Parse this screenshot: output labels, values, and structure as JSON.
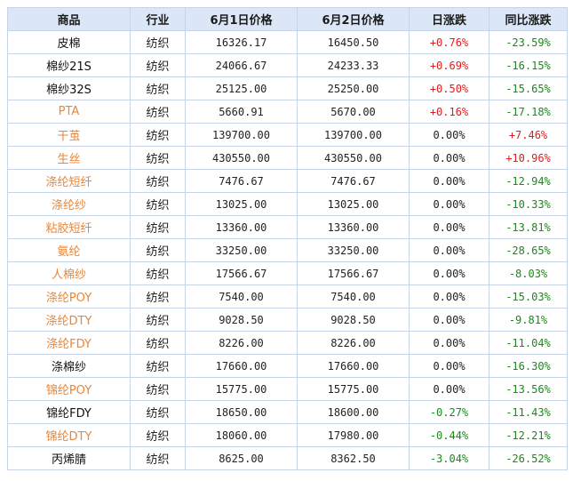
{
  "headers": [
    "商品",
    "行业",
    "6月1日价格",
    "6月2日价格",
    "日涨跌",
    "同比涨跌"
  ],
  "colors": {
    "header_bg": "#dbe7f7",
    "border": "#c6d3e8",
    "up": "#e31b1b",
    "down": "#1a8a1a",
    "link": "#e8863a"
  },
  "rows": [
    {
      "name": "皮棉",
      "is_link": false,
      "industry": "纺织",
      "price_jun1": "16326.17",
      "price_jun2": "16450.50",
      "daily": "+0.76%",
      "daily_dir": "pos",
      "yoy": "-23.59%",
      "yoy_dir": "neg"
    },
    {
      "name": "棉纱21S",
      "is_link": false,
      "industry": "纺织",
      "price_jun1": "24066.67",
      "price_jun2": "24233.33",
      "daily": "+0.69%",
      "daily_dir": "pos",
      "yoy": "-16.15%",
      "yoy_dir": "neg"
    },
    {
      "name": "棉纱32S",
      "is_link": false,
      "industry": "纺织",
      "price_jun1": "25125.00",
      "price_jun2": "25250.00",
      "daily": "+0.50%",
      "daily_dir": "pos",
      "yoy": "-15.65%",
      "yoy_dir": "neg"
    },
    {
      "name": "PTA",
      "is_link": true,
      "industry": "纺织",
      "price_jun1": "5660.91",
      "price_jun2": "5670.00",
      "daily": "+0.16%",
      "daily_dir": "pos",
      "yoy": "-17.18%",
      "yoy_dir": "neg"
    },
    {
      "name": "干茧",
      "is_link": true,
      "industry": "纺织",
      "price_jun1": "139700.00",
      "price_jun2": "139700.00",
      "daily": "0.00%",
      "daily_dir": "neu",
      "yoy": "+7.46%",
      "yoy_dir": "pos"
    },
    {
      "name": "生丝",
      "is_link": true,
      "industry": "纺织",
      "price_jun1": "430550.00",
      "price_jun2": "430550.00",
      "daily": "0.00%",
      "daily_dir": "neu",
      "yoy": "+10.96%",
      "yoy_dir": "pos"
    },
    {
      "name": "涤纶短纤",
      "is_link": true,
      "industry": "纺织",
      "price_jun1": "7476.67",
      "price_jun2": "7476.67",
      "daily": "0.00%",
      "daily_dir": "neu",
      "yoy": "-12.94%",
      "yoy_dir": "neg"
    },
    {
      "name": "涤纶纱",
      "is_link": true,
      "industry": "纺织",
      "price_jun1": "13025.00",
      "price_jun2": "13025.00",
      "daily": "0.00%",
      "daily_dir": "neu",
      "yoy": "-10.33%",
      "yoy_dir": "neg"
    },
    {
      "name": "粘胶短纤",
      "is_link": true,
      "industry": "纺织",
      "price_jun1": "13360.00",
      "price_jun2": "13360.00",
      "daily": "0.00%",
      "daily_dir": "neu",
      "yoy": "-13.81%",
      "yoy_dir": "neg"
    },
    {
      "name": "氨纶",
      "is_link": true,
      "industry": "纺织",
      "price_jun1": "33250.00",
      "price_jun2": "33250.00",
      "daily": "0.00%",
      "daily_dir": "neu",
      "yoy": "-28.65%",
      "yoy_dir": "neg"
    },
    {
      "name": "人棉纱",
      "is_link": true,
      "industry": "纺织",
      "price_jun1": "17566.67",
      "price_jun2": "17566.67",
      "daily": "0.00%",
      "daily_dir": "neu",
      "yoy": "-8.03%",
      "yoy_dir": "neg"
    },
    {
      "name": "涤纶POY",
      "is_link": true,
      "industry": "纺织",
      "price_jun1": "7540.00",
      "price_jun2": "7540.00",
      "daily": "0.00%",
      "daily_dir": "neu",
      "yoy": "-15.03%",
      "yoy_dir": "neg"
    },
    {
      "name": "涤纶DTY",
      "is_link": true,
      "industry": "纺织",
      "price_jun1": "9028.50",
      "price_jun2": "9028.50",
      "daily": "0.00%",
      "daily_dir": "neu",
      "yoy": "-9.81%",
      "yoy_dir": "neg"
    },
    {
      "name": "涤纶FDY",
      "is_link": true,
      "industry": "纺织",
      "price_jun1": "8226.00",
      "price_jun2": "8226.00",
      "daily": "0.00%",
      "daily_dir": "neu",
      "yoy": "-11.04%",
      "yoy_dir": "neg"
    },
    {
      "name": "涤棉纱",
      "is_link": false,
      "industry": "纺织",
      "price_jun1": "17660.00",
      "price_jun2": "17660.00",
      "daily": "0.00%",
      "daily_dir": "neu",
      "yoy": "-16.30%",
      "yoy_dir": "neg"
    },
    {
      "name": "锦纶POY",
      "is_link": true,
      "industry": "纺织",
      "price_jun1": "15775.00",
      "price_jun2": "15775.00",
      "daily": "0.00%",
      "daily_dir": "neu",
      "yoy": "-13.56%",
      "yoy_dir": "neg"
    },
    {
      "name": "锦纶FDY",
      "is_link": false,
      "industry": "纺织",
      "price_jun1": "18650.00",
      "price_jun2": "18600.00",
      "daily": "-0.27%",
      "daily_dir": "neg",
      "yoy": "-11.43%",
      "yoy_dir": "neg"
    },
    {
      "name": "锦纶DTY",
      "is_link": true,
      "industry": "纺织",
      "price_jun1": "18060.00",
      "price_jun2": "17980.00",
      "daily": "-0.44%",
      "daily_dir": "neg",
      "yoy": "-12.21%",
      "yoy_dir": "neg"
    },
    {
      "name": "丙烯腈",
      "is_link": false,
      "industry": "纺织",
      "price_jun1": "8625.00",
      "price_jun2": "8362.50",
      "daily": "-3.04%",
      "daily_dir": "neg",
      "yoy": "-26.52%",
      "yoy_dir": "neg"
    }
  ]
}
